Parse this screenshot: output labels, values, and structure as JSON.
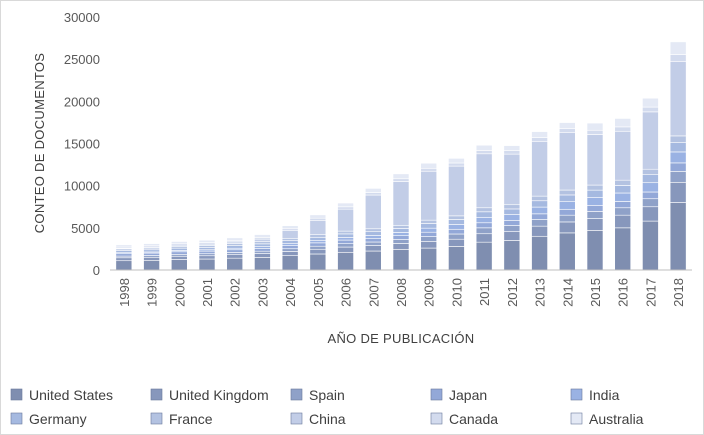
{
  "chart_data": {
    "type": "bar",
    "stacked": true,
    "xlabel": "AÑO DE PUBLICACIÓN",
    "ylabel": "CONTEO DE DOCUMENTOS",
    "ylim": [
      0,
      30000
    ],
    "yticks": [
      0,
      5000,
      10000,
      15000,
      20000,
      25000,
      30000
    ],
    "grid": false,
    "legend_position": "bottom",
    "categories": [
      "1998",
      "1999",
      "2000",
      "2001",
      "2002",
      "2003",
      "2004",
      "2005",
      "2006",
      "2007",
      "2008",
      "2009",
      "2010",
      "2011",
      "2012",
      "2013",
      "2014",
      "2015",
      "2016",
      "2017",
      "2018"
    ],
    "series": [
      {
        "name": "United States",
        "color": "#7f8eb0",
        "values": [
          1100,
          1150,
          1250,
          1300,
          1400,
          1500,
          1700,
          1900,
          2100,
          2250,
          2450,
          2600,
          2800,
          3300,
          3500,
          4000,
          4400,
          4700,
          5000,
          5800,
          8000
        ]
      },
      {
        "name": "United Kingdom",
        "color": "#8797bc",
        "values": [
          350,
          360,
          380,
          390,
          420,
          450,
          500,
          560,
          620,
          650,
          700,
          800,
          850,
          1000,
          1050,
          1200,
          1300,
          1400,
          1500,
          1700,
          2400
        ]
      },
      {
        "name": "Spain",
        "color": "#8fa1c8",
        "values": [
          200,
          210,
          230,
          240,
          260,
          280,
          320,
          360,
          400,
          420,
          460,
          560,
          620,
          700,
          720,
          780,
          800,
          850,
          880,
          950,
          1300
        ]
      },
      {
        "name": "Japan",
        "color": "#93a8d8",
        "values": [
          280,
          290,
          300,
          310,
          320,
          340,
          370,
          400,
          430,
          440,
          460,
          520,
          560,
          600,
          620,
          680,
          700,
          720,
          750,
          800,
          1000
        ]
      },
      {
        "name": "India",
        "color": "#9ab2e3",
        "values": [
          120,
          130,
          150,
          160,
          180,
          200,
          230,
          260,
          300,
          330,
          380,
          480,
          560,
          650,
          680,
          800,
          900,
          950,
          1000,
          1100,
          1300
        ]
      },
      {
        "name": "Germany",
        "color": "#a5b9e0",
        "values": [
          250,
          260,
          280,
          290,
          310,
          330,
          360,
          400,
          430,
          450,
          480,
          550,
          600,
          650,
          670,
          750,
          800,
          850,
          900,
          950,
          1100
        ]
      },
      {
        "name": "France",
        "color": "#b3c2e1",
        "values": [
          200,
          210,
          220,
          230,
          240,
          260,
          280,
          310,
          330,
          350,
          370,
          400,
          430,
          480,
          500,
          550,
          580,
          600,
          620,
          650,
          800
        ]
      },
      {
        "name": "China",
        "color": "#c2cde7",
        "values": [
          80,
          100,
          130,
          150,
          200,
          300,
          900,
          1700,
          2600,
          4000,
          5200,
          5800,
          5900,
          6400,
          6000,
          6500,
          6800,
          6000,
          5800,
          6800,
          8800
        ]
      },
      {
        "name": "Canada",
        "color": "#d3dbee",
        "values": [
          150,
          160,
          170,
          180,
          190,
          210,
          230,
          250,
          280,
          290,
          320,
          350,
          370,
          400,
          410,
          450,
          480,
          500,
          520,
          570,
          850
        ]
      },
      {
        "name": "Australia",
        "color": "#e4e9f5",
        "values": [
          250,
          260,
          270,
          280,
          290,
          330,
          360,
          400,
          450,
          500,
          580,
          600,
          550,
          620,
          600,
          700,
          720,
          850,
          1000,
          1050,
          1500
        ]
      }
    ]
  }
}
